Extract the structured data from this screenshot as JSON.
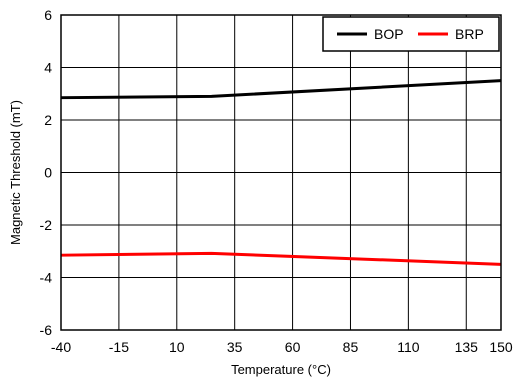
{
  "chart_data": {
    "type": "line",
    "title": "",
    "xlabel": "Temperature (°C)",
    "ylabel": "Magnetic Threshold (mT)",
    "xlim": [
      -40,
      150
    ],
    "ylim": [
      -6,
      6
    ],
    "x_ticks": [
      -40,
      -15,
      10,
      35,
      60,
      85,
      110,
      135,
      150
    ],
    "y_ticks": [
      -6,
      -4,
      -2,
      0,
      2,
      4,
      6
    ],
    "grid": true,
    "legend_position": "top-right",
    "series": [
      {
        "name": "BOP",
        "color": "#000000",
        "x": [
          -40,
          25,
          150
        ],
        "y": [
          2.85,
          2.9,
          3.5
        ]
      },
      {
        "name": "BRP",
        "color": "#ff0000",
        "x": [
          -40,
          25,
          150
        ],
        "y": [
          -3.15,
          -3.08,
          -3.5
        ]
      }
    ]
  }
}
